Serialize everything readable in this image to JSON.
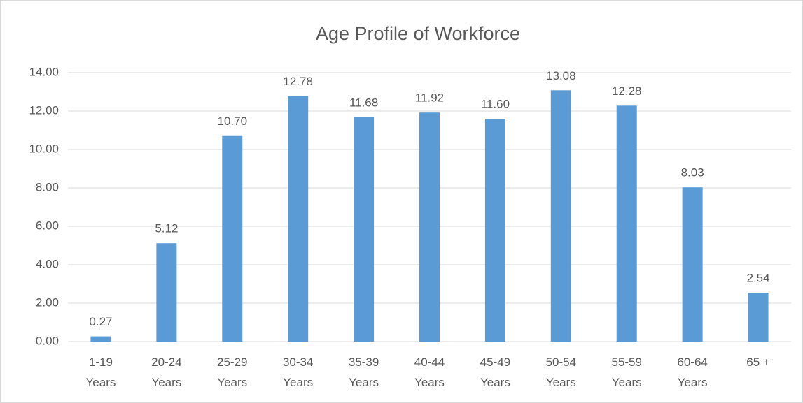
{
  "chart_data": {
    "type": "bar",
    "title": "Age Profile of Workforce",
    "categories": [
      "1-19\nYears",
      "20-24\nYears",
      "25-29\nYears",
      "30-34\nYears",
      "35-39\nYears",
      "40-44\nYears",
      "45-49\nYears",
      "50-54\nYears",
      "55-59\nYears",
      "60-64\nYears",
      "65 +"
    ],
    "values": [
      0.27,
      5.12,
      10.7,
      12.78,
      11.68,
      11.92,
      11.6,
      13.08,
      12.28,
      8.03,
      2.54
    ],
    "value_labels": [
      "0.27",
      "5.12",
      "10.70",
      "12.78",
      "11.68",
      "11.92",
      "11.60",
      "13.08",
      "12.28",
      "8.03",
      "2.54"
    ],
    "color": "#5b9bd5",
    "ylim": [
      0,
      14
    ],
    "yticks": [
      {
        "value": 0,
        "label": "0.00"
      },
      {
        "value": 2,
        "label": "2.00"
      },
      {
        "value": 4,
        "label": "4.00"
      },
      {
        "value": 6,
        "label": "6.00"
      },
      {
        "value": 8,
        "label": "8.00"
      },
      {
        "value": 10,
        "label": "10.00"
      },
      {
        "value": 12,
        "label": "12.00"
      },
      {
        "value": 14,
        "label": "14.00"
      }
    ],
    "grid": true
  }
}
